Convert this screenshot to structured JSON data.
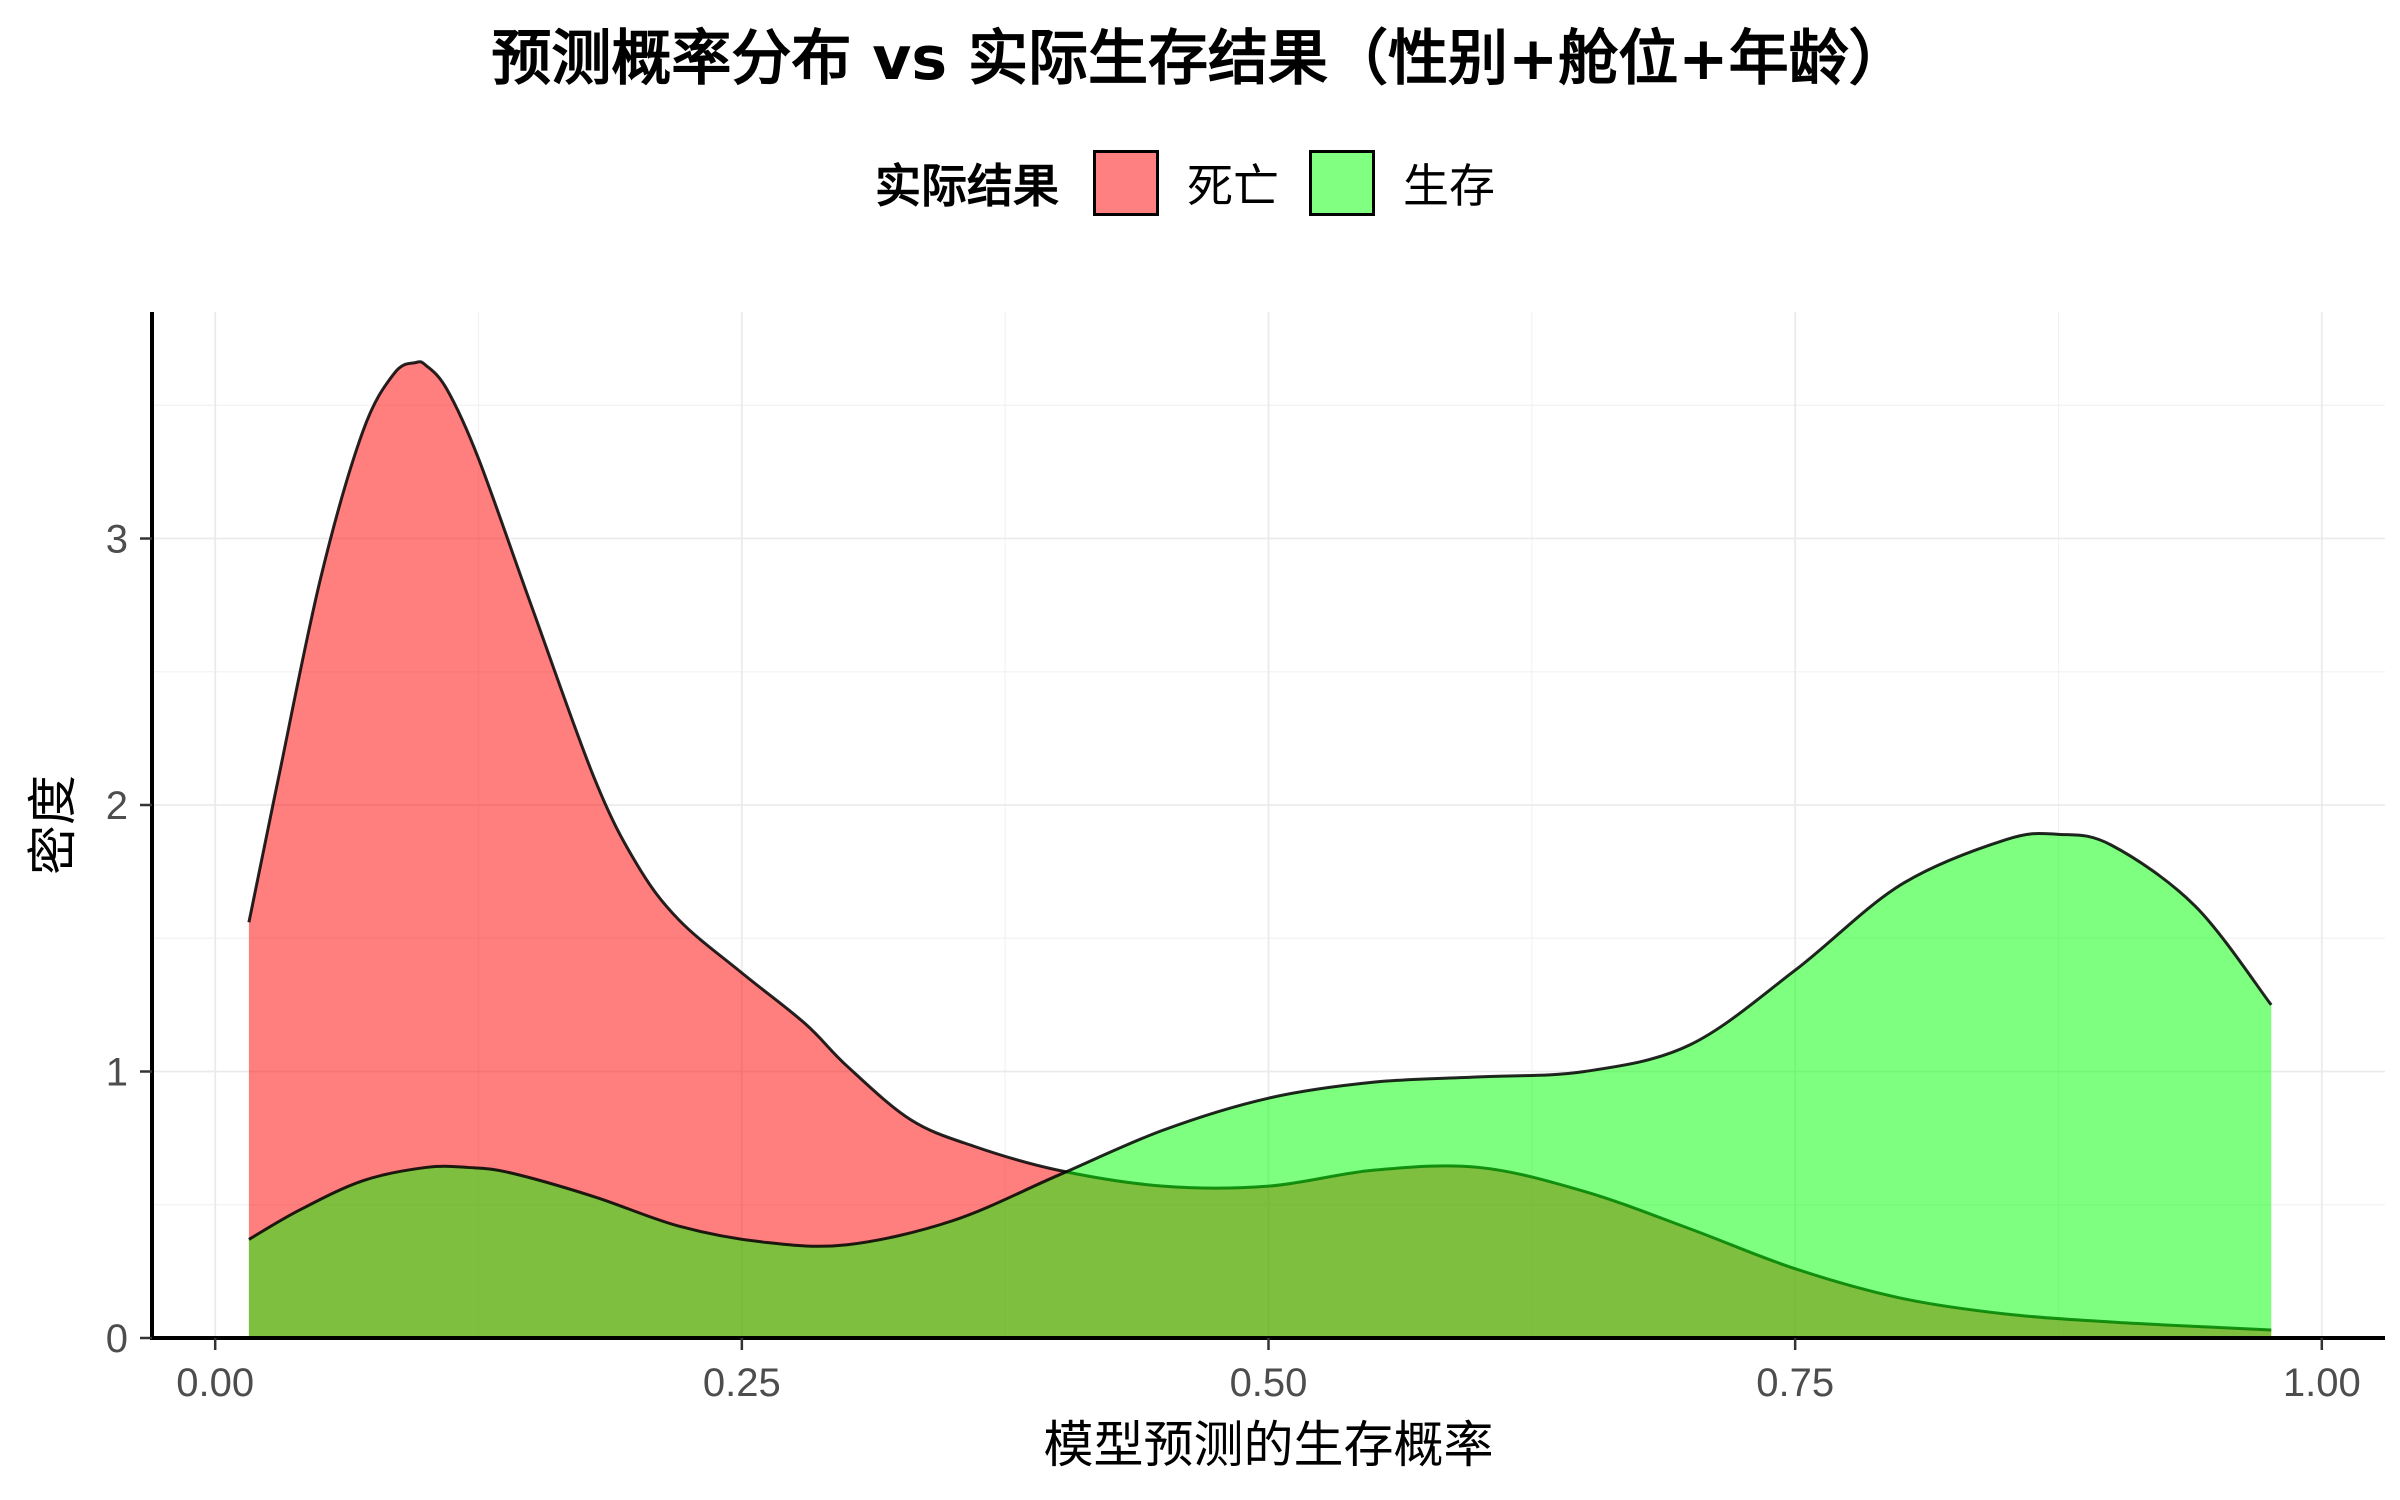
{
  "chart_data": {
    "type": "area",
    "title": "预测概率分布 vs 实际生存结果（性别+舱位+年龄）",
    "xlabel": "模型预测的生存概率",
    "ylabel": "密度",
    "xlim": [
      -0.03,
      1.03
    ],
    "ylim": [
      0,
      3.85
    ],
    "x_ticks": [
      {
        "value": 0.0,
        "label": "0.00"
      },
      {
        "value": 0.25,
        "label": "0.25"
      },
      {
        "value": 0.5,
        "label": "0.50"
      },
      {
        "value": 0.75,
        "label": "0.75"
      },
      {
        "value": 1.0,
        "label": "1.00"
      }
    ],
    "y_ticks": [
      {
        "value": 0,
        "label": "0"
      },
      {
        "value": 1,
        "label": "1"
      },
      {
        "value": 2,
        "label": "2"
      },
      {
        "value": 3,
        "label": "3"
      }
    ],
    "grid": true,
    "legend": {
      "title": "实际结果",
      "position": "top",
      "entries": [
        {
          "label": "死亡",
          "color": "#ff8080"
        },
        {
          "label": "生存",
          "color": "#80ff80"
        }
      ]
    },
    "series": [
      {
        "name": "死亡",
        "color": "#ff0000",
        "x": [
          0.016,
          0.03,
          0.05,
          0.07,
          0.085,
          0.095,
          0.1,
          0.11,
          0.125,
          0.15,
          0.18,
          0.2,
          0.22,
          0.25,
          0.28,
          0.3,
          0.33,
          0.36,
          0.4,
          0.45,
          0.5,
          0.55,
          0.6,
          0.65,
          0.7,
          0.75,
          0.8,
          0.85,
          0.9,
          0.95,
          0.976
        ],
        "values": [
          1.56,
          2.1,
          2.85,
          3.4,
          3.62,
          3.66,
          3.65,
          3.56,
          3.3,
          2.75,
          2.1,
          1.78,
          1.57,
          1.37,
          1.18,
          1.02,
          0.82,
          0.72,
          0.63,
          0.57,
          0.57,
          0.63,
          0.64,
          0.55,
          0.41,
          0.26,
          0.15,
          0.09,
          0.06,
          0.04,
          0.03
        ]
      },
      {
        "name": "生存",
        "color": "#00ff00",
        "x": [
          0.016,
          0.04,
          0.07,
          0.1,
          0.12,
          0.14,
          0.18,
          0.22,
          0.26,
          0.3,
          0.35,
          0.4,
          0.45,
          0.5,
          0.55,
          0.6,
          0.65,
          0.7,
          0.75,
          0.8,
          0.85,
          0.875,
          0.9,
          0.94,
          0.976
        ],
        "values": [
          0.37,
          0.48,
          0.59,
          0.64,
          0.64,
          0.62,
          0.53,
          0.42,
          0.36,
          0.35,
          0.44,
          0.61,
          0.78,
          0.9,
          0.96,
          0.98,
          1.0,
          1.1,
          1.38,
          1.7,
          1.87,
          1.89,
          1.85,
          1.62,
          1.25
        ]
      }
    ]
  }
}
